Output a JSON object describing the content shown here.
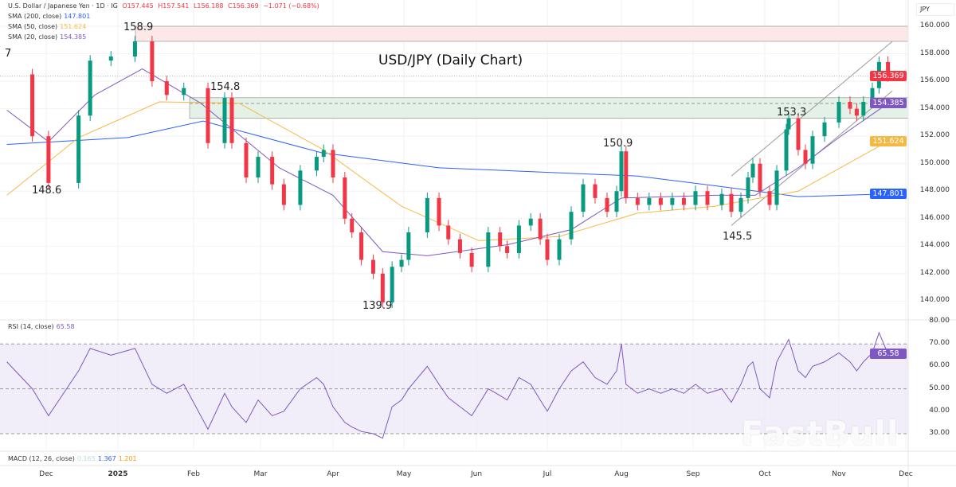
{
  "header": {
    "symbol": "U.S. Dollar / Japanese Yen · 1D · IG",
    "o": "O157.445",
    "h": "H157.541",
    "l": "L156.188",
    "c": "C156.369",
    "chg": "−1.071 (−0.68%)"
  },
  "indicators": [
    {
      "label": "SMA (200, close)",
      "value": "147.801",
      "color": "#2962ff"
    },
    {
      "label": "SMA (50, close)",
      "value": "151.624",
      "color": "#f5b942"
    },
    {
      "label": "SMA (20, close)",
      "value": "154.385",
      "color": "#7e57c2"
    }
  ],
  "rsi_label": {
    "label": "RSI (14, close)",
    "value": "65.58"
  },
  "macd_label": {
    "label": "MACD (12, 26, close)",
    "v1": "0.165",
    "v2": "1.367",
    "v3": "1.201"
  },
  "currency": "JPY",
  "watermark": "FastBull",
  "colors": {
    "up": "#089981",
    "down": "#f23645",
    "rsi": "#7e57c2",
    "resistance_zone": "#fde8e8",
    "support_zone": "#e3f1e6"
  },
  "chart_data": {
    "type": "candlestick",
    "title": "USD/JPY (Daily Chart)",
    "ylim": [
      139,
      160.5
    ],
    "y_ticks": [
      "160.000",
      "158.000",
      "156.000",
      "154.000",
      "152.000",
      "150.000",
      "148.000",
      "146.000",
      "144.000",
      "142.000",
      "140.000"
    ],
    "x_ticks": [
      "Dec",
      "2025",
      "Feb",
      "Mar",
      "Apr",
      "May",
      "Jun",
      "Jul",
      "Aug",
      "Sep",
      "Oct",
      "Nov",
      "Dec"
    ],
    "price_tags": [
      {
        "value": "156.369",
        "color": "#f23645"
      },
      {
        "value": "154.385",
        "color": "#7e57c2"
      },
      {
        "value": "151.624",
        "color": "#f5b942"
      },
      {
        "value": "147.801",
        "color": "#2962ff"
      }
    ],
    "annotations": [
      "7",
      "158.9",
      "154.8",
      "148.6",
      "139.9",
      "150.9",
      "153.3",
      "145.5"
    ],
    "zones": [
      {
        "from": 158.9,
        "to": 160
      },
      {
        "from": 153.3,
        "to": 154.8
      }
    ],
    "dates": [
      "2024-11-14",
      "2024-11-25",
      "2024-12-02",
      "2024-12-15",
      "2024-12-20",
      "2024-12-29",
      "2025-01-08",
      "2025-01-15",
      "2025-01-21",
      "2025-01-28",
      "2025-02-07",
      "2025-02-14",
      "2025-02-17",
      "2025-02-23",
      "2025-02-28",
      "2025-03-06",
      "2025-03-11",
      "2025-03-18",
      "2025-03-25",
      "2025-03-28",
      "2025-04-01",
      "2025-04-06",
      "2025-04-09",
      "2025-04-13",
      "2025-04-18",
      "2025-04-22",
      "2025-04-26",
      "2025-04-30",
      "2025-05-03",
      "2025-05-11",
      "2025-05-16",
      "2025-05-20",
      "2025-05-25",
      "2025-05-30",
      "2025-06-06",
      "2025-06-11",
      "2025-06-14",
      "2025-06-19",
      "2025-06-24",
      "2025-06-28",
      "2025-07-01",
      "2025-07-06",
      "2025-07-11",
      "2025-07-16",
      "2025-07-21",
      "2025-07-26",
      "2025-07-30",
      "2025-08-01",
      "2025-08-03",
      "2025-08-08",
      "2025-08-13",
      "2025-08-18",
      "2025-08-23",
      "2025-08-28",
      "2025-09-02",
      "2025-09-07",
      "2025-09-13",
      "2025-09-17",
      "2025-09-21",
      "2025-09-24",
      "2025-09-26",
      "2025-09-29",
      "2025-10-03",
      "2025-10-06",
      "2025-10-10",
      "2025-10-11",
      "2025-10-15",
      "2025-10-18",
      "2025-10-21",
      "2025-10-26",
      "2025-11-01",
      "2025-11-06",
      "2025-11-09",
      "2025-11-12",
      "2025-11-16",
      "2025-11-19",
      "2025-11-23"
    ],
    "closes": [
      156.5,
      152.0,
      148.6,
      153.5,
      157.5,
      157.8,
      158.9,
      156.0,
      155.0,
      155.5,
      151.5,
      154.8,
      151.5,
      149.0,
      150.5,
      148.5,
      147.0,
      149.5,
      150.5,
      151.0,
      149.0,
      146.0,
      145.0,
      143.0,
      142.0,
      139.9,
      142.5,
      143.0,
      145.0,
      147.5,
      145.5,
      144.5,
      143.5,
      142.5,
      145.0,
      144.0,
      143.5,
      145.5,
      146.0,
      144.5,
      143.0,
      144.5,
      146.5,
      148.5,
      147.5,
      146.5,
      148.0,
      150.9,
      147.5,
      147.0,
      147.5,
      147.0,
      147.5,
      147.0,
      148.0,
      147.0,
      147.8,
      146.5,
      147.5,
      149.0,
      150.0,
      148.0,
      147.0,
      149.5,
      152.5,
      153.3,
      151.0,
      150.0,
      152.0,
      153.0,
      154.5,
      154.0,
      153.5,
      154.5,
      155.5,
      157.4,
      156.369
    ],
    "rsi": {
      "ylim": [
        27,
        82
      ],
      "y_ticks": [
        "80.00",
        "70.00",
        "60.00",
        "50.00",
        "40.00",
        "30.00"
      ],
      "values": [
        62,
        50,
        38,
        58,
        68,
        65,
        68,
        52,
        48,
        52,
        32,
        48,
        42,
        35,
        45,
        38,
        40,
        50,
        55,
        52,
        42,
        35,
        33,
        31,
        30,
        28,
        42,
        45,
        50,
        60,
        52,
        46,
        42,
        38,
        50,
        47,
        45,
        55,
        52,
        45,
        40,
        50,
        58,
        62,
        55,
        52,
        58,
        70,
        52,
        48,
        50,
        48,
        50,
        48,
        52,
        48,
        50,
        44,
        52,
        60,
        62,
        50,
        46,
        62,
        70,
        72,
        58,
        55,
        60,
        62,
        66,
        62,
        58,
        62,
        66,
        75,
        65.58
      ]
    },
    "sma200": [
      [
        "2024-11-14",
        151.4
      ],
      [
        "2025-01-05",
        151.9
      ],
      [
        "2025-02-05",
        153.1
      ],
      [
        "2025-03-27",
        150.8
      ],
      [
        "2025-05-16",
        149.7
      ],
      [
        "2025-08-08",
        149.1
      ],
      [
        "2025-09-10",
        148.4
      ],
      [
        "2025-10-15",
        147.6
      ],
      [
        "2025-11-23",
        147.801
      ]
    ],
    "sma50": [
      [
        "2024-11-14",
        147.7
      ],
      [
        "2024-12-15",
        151.9
      ],
      [
        "2025-01-18",
        154.5
      ],
      [
        "2025-02-20",
        154.4
      ],
      [
        "2025-03-27",
        151.1
      ],
      [
        "2025-04-30",
        146.9
      ],
      [
        "2025-06-02",
        144.4
      ],
      [
        "2025-07-06",
        144.7
      ],
      [
        "2025-08-08",
        146.4
      ],
      [
        "2025-09-10",
        146.9
      ],
      [
        "2025-10-15",
        148.0
      ],
      [
        "2025-11-23",
        151.624
      ]
    ],
    "sma20": [
      [
        "2024-11-14",
        153.9
      ],
      [
        "2024-12-02",
        151.6
      ],
      [
        "2024-12-22",
        155.0
      ],
      [
        "2025-01-11",
        156.9
      ],
      [
        "2025-02-04",
        154.4
      ],
      [
        "2025-03-09",
        149.7
      ],
      [
        "2025-04-01",
        147.7
      ],
      [
        "2025-04-22",
        143.6
      ],
      [
        "2025-05-11",
        143.3
      ],
      [
        "2025-06-14",
        144.1
      ],
      [
        "2025-07-11",
        145.2
      ],
      [
        "2025-08-01",
        147.5
      ],
      [
        "2025-09-10",
        147.7
      ],
      [
        "2025-09-27",
        147.7
      ],
      [
        "2025-10-15",
        149.7
      ],
      [
        "2025-11-01",
        151.9
      ],
      [
        "2025-11-23",
        154.385
      ]
    ],
    "channel": {
      "lower": [
        [
          "2025-09-17",
          145.5
        ],
        [
          "2025-11-25",
          155.3
        ]
      ],
      "upper": [
        [
          "2025-09-17",
          149.1
        ],
        [
          "2025-11-25",
          158.9
        ]
      ]
    }
  }
}
